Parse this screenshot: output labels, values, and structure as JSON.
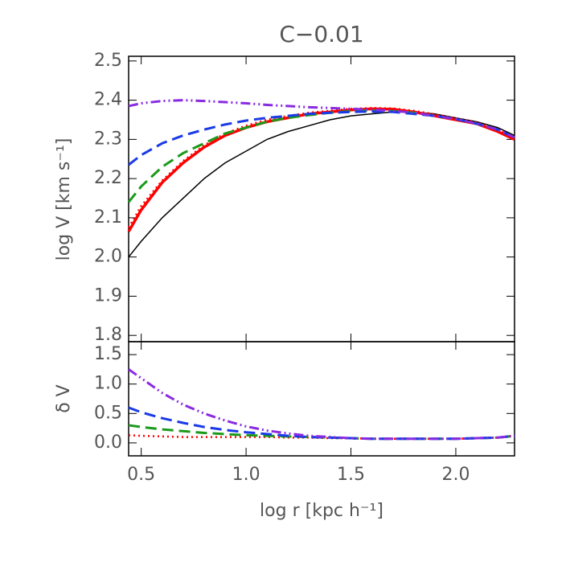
{
  "chart_data": [
    {
      "type": "line",
      "title": "C−0.01",
      "ylabel": "log V [km  s⁻¹]",
      "xlim": [
        0.44,
        2.28
      ],
      "ylim": [
        1.784,
        2.512
      ],
      "yticks": [
        1.8,
        1.9,
        {
          "value": 2,
          "label": "2.0"
        },
        2.1,
        2.2,
        2.3,
        2.4,
        2.5
      ],
      "x": [
        0.44,
        0.5,
        0.6,
        0.7,
        0.8,
        0.9,
        1.0,
        1.1,
        1.2,
        1.3,
        1.4,
        1.5,
        1.6,
        1.7,
        1.8,
        1.9,
        2.0,
        2.1,
        2.2,
        2.28
      ],
      "series": [
        {
          "color": "#000000",
          "dash": "solid",
          "linewidth": 1.5,
          "values": [
            2.0,
            2.04,
            2.1,
            2.15,
            2.2,
            2.24,
            2.27,
            2.3,
            2.32,
            2.335,
            2.35,
            2.36,
            2.365,
            2.37,
            2.37,
            2.365,
            2.355,
            2.345,
            2.33,
            2.31
          ]
        },
        {
          "color": "#ff0000",
          "dash": "solid",
          "linewidth": 3.5,
          "values": [
            2.065,
            2.12,
            2.19,
            2.24,
            2.28,
            2.31,
            2.33,
            2.345,
            2.355,
            2.365,
            2.37,
            2.375,
            2.378,
            2.377,
            2.37,
            2.36,
            2.35,
            2.34,
            2.32,
            2.3
          ]
        },
        {
          "color": "#ff0000",
          "dash": "dotted",
          "linewidth": 2.5,
          "values": [
            2.075,
            2.13,
            2.195,
            2.245,
            2.285,
            2.315,
            2.335,
            2.35,
            2.36,
            2.368,
            2.373,
            2.378,
            2.38,
            2.379,
            2.373,
            2.364,
            2.354,
            2.343,
            2.324,
            2.305
          ]
        },
        {
          "color": "#1a9a1a",
          "dash": "dashed",
          "linewidth": 3,
          "values": [
            2.14,
            2.18,
            2.23,
            2.265,
            2.29,
            2.315,
            2.33,
            2.345,
            2.355,
            2.362,
            2.368,
            2.372,
            2.374,
            2.372,
            2.368,
            2.36,
            2.352,
            2.34,
            2.325,
            2.305
          ]
        },
        {
          "color": "#1a3ae6",
          "dash": "dashed",
          "linewidth": 3,
          "values": [
            2.235,
            2.26,
            2.29,
            2.31,
            2.325,
            2.338,
            2.348,
            2.355,
            2.36,
            2.365,
            2.368,
            2.37,
            2.371,
            2.37,
            2.365,
            2.36,
            2.352,
            2.34,
            2.325,
            2.305
          ]
        },
        {
          "color": "#8a2be2",
          "dash": "dashdotdot",
          "linewidth": 3,
          "values": [
            2.385,
            2.392,
            2.398,
            2.4,
            2.398,
            2.395,
            2.392,
            2.388,
            2.385,
            2.382,
            2.38,
            2.378,
            2.376,
            2.373,
            2.368,
            2.36,
            2.352,
            2.34,
            2.325,
            2.305
          ]
        }
      ]
    },
    {
      "type": "line",
      "ylabel": "δ V",
      "xlabel": "log r [kpc h⁻¹]",
      "xlim": [
        0.44,
        2.28
      ],
      "ylim": [
        -0.22,
        1.72
      ],
      "xticks": [
        0.5,
        {
          "value": 1,
          "label": "1.0"
        },
        1.5,
        {
          "value": 2,
          "label": "2.0"
        }
      ],
      "yticks": [
        {
          "value": 0,
          "label": "0.0"
        },
        0.5,
        {
          "value": 1,
          "label": "1.0"
        },
        1.5
      ],
      "x": [
        0.44,
        0.5,
        0.6,
        0.7,
        0.8,
        0.9,
        1.0,
        1.1,
        1.2,
        1.3,
        1.4,
        1.5,
        1.6,
        1.7,
        1.8,
        1.9,
        2.0,
        2.1,
        2.2,
        2.28
      ],
      "series": [
        {
          "color": "#ff0000",
          "dash": "dotted",
          "linewidth": 2.5,
          "values": [
            0.13,
            0.12,
            0.11,
            0.1,
            0.1,
            0.1,
            0.1,
            0.1,
            0.09,
            0.09,
            0.08,
            0.08,
            0.07,
            0.07,
            0.07,
            0.07,
            0.07,
            0.08,
            0.09,
            0.12
          ]
        },
        {
          "color": "#1a9a1a",
          "dash": "dashed",
          "linewidth": 3,
          "values": [
            0.3,
            0.27,
            0.23,
            0.2,
            0.17,
            0.15,
            0.13,
            0.12,
            0.11,
            0.1,
            0.09,
            0.08,
            0.07,
            0.07,
            0.07,
            0.07,
            0.07,
            0.08,
            0.09,
            0.12
          ]
        },
        {
          "color": "#1a3ae6",
          "dash": "dashed",
          "linewidth": 3,
          "values": [
            0.6,
            0.52,
            0.42,
            0.34,
            0.27,
            0.22,
            0.18,
            0.15,
            0.12,
            0.1,
            0.09,
            0.08,
            0.07,
            0.07,
            0.07,
            0.07,
            0.07,
            0.08,
            0.09,
            0.12
          ]
        },
        {
          "color": "#8a2be2",
          "dash": "dashdotdot",
          "linewidth": 3,
          "values": [
            1.25,
            1.1,
            0.85,
            0.65,
            0.5,
            0.38,
            0.28,
            0.21,
            0.16,
            0.12,
            0.1,
            0.08,
            0.07,
            0.07,
            0.07,
            0.07,
            0.07,
            0.08,
            0.09,
            0.12
          ]
        }
      ]
    }
  ]
}
